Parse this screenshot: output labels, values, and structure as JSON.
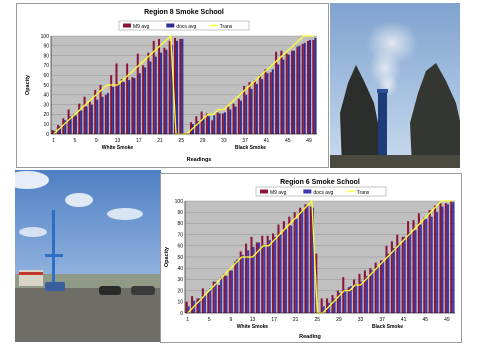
{
  "chart_data": [
    {
      "type": "bar",
      "title": "Region 8 Smoke School",
      "xlabel": "Readings",
      "ylabel": "Opacity",
      "ylim": [
        0,
        100
      ],
      "yticks": [
        0,
        10,
        20,
        30,
        40,
        50,
        60,
        70,
        80,
        90,
        100
      ],
      "xticks": [
        "1",
        "5",
        "9",
        "13",
        "17",
        "21",
        "25",
        "29",
        "33",
        "37",
        "41",
        "45",
        "49"
      ],
      "group_labels": [
        "White Smoke",
        "Black Smoke"
      ],
      "legend": {
        "position": "top-center",
        "labels": [
          "M9 avg",
          "docs avg",
          "Trans"
        ]
      },
      "grid": true,
      "colors": {
        "m9": "#8b1538",
        "docs": "#2f2f9a",
        "trans": "#ffff33",
        "plot_bg": "#c0c0c0"
      },
      "readings": [
        1,
        2,
        3,
        4,
        5,
        6,
        7,
        8,
        9,
        10,
        11,
        12,
        13,
        14,
        15,
        16,
        17,
        18,
        19,
        20,
        21,
        22,
        23,
        24,
        25,
        26,
        27,
        28,
        29,
        30,
        31,
        32,
        33,
        34,
        35,
        36,
        37,
        38,
        39,
        40,
        41,
        42,
        43,
        44,
        45,
        46,
        47,
        48,
        49,
        50
      ],
      "series": [
        {
          "name": "M9 avg",
          "values": [
            4,
            9,
            16,
            25,
            20,
            31,
            38,
            33,
            45,
            50,
            40,
            60,
            72,
            56,
            72,
            58,
            82,
            70,
            83,
            95,
            97,
            88,
            95,
            98,
            97,
            0,
            12,
            18,
            23,
            21,
            14,
            22,
            21,
            28,
            31,
            36,
            49,
            53,
            55,
            60,
            66,
            63,
            84,
            85,
            82,
            85,
            89,
            92,
            95,
            96
          ]
        },
        {
          "name": "docs avg",
          "values": [
            3,
            8,
            14,
            18,
            19,
            24,
            28,
            30,
            35,
            38,
            42,
            48,
            52,
            53,
            55,
            57,
            62,
            68,
            74,
            79,
            83,
            86,
            91,
            95,
            97,
            0,
            10,
            13,
            16,
            18,
            19,
            21,
            22,
            25,
            28,
            34,
            40,
            46,
            51,
            56,
            62,
            66,
            71,
            76,
            81,
            85,
            90,
            93,
            96,
            98
          ]
        },
        {
          "name": "Trans",
          "values": [
            0,
            5,
            10,
            15,
            20,
            25,
            30,
            35,
            40,
            45,
            50,
            50,
            50,
            55,
            60,
            65,
            70,
            75,
            80,
            85,
            90,
            95,
            100,
            0,
            0,
            0,
            5,
            10,
            15,
            20,
            20,
            25,
            25,
            30,
            35,
            40,
            45,
            50,
            55,
            60,
            65,
            70,
            75,
            80,
            85,
            90,
            95,
            100,
            100,
            100
          ]
        }
      ]
    },
    {
      "type": "bar",
      "title": "Region 6 Smoke School",
      "xlabel": "Reading",
      "ylabel": "Opacity",
      "ylim": [
        0,
        100
      ],
      "yticks": [
        0,
        10,
        20,
        30,
        40,
        50,
        60,
        70,
        80,
        90,
        100
      ],
      "xticks": [
        "1",
        "5",
        "9",
        "13",
        "17",
        "21",
        "25",
        "29",
        "33",
        "37",
        "41",
        "45",
        "49"
      ],
      "group_labels": [
        "White Smoke",
        "Black Smoke"
      ],
      "legend": {
        "position": "top-center",
        "labels": [
          "M9 avg",
          "docs avg",
          "Trans"
        ]
      },
      "grid": true,
      "colors": {
        "m9": "#8b1538",
        "docs": "#3a3ab0",
        "trans": "#ffff33",
        "plot_bg": "#c0c0c0"
      },
      "readings": [
        1,
        2,
        3,
        4,
        5,
        6,
        7,
        8,
        9,
        10,
        11,
        12,
        13,
        14,
        15,
        16,
        17,
        18,
        19,
        20,
        21,
        22,
        23,
        24,
        25,
        26,
        27,
        28,
        29,
        30,
        31,
        32,
        33,
        34,
        35,
        36,
        37,
        38,
        39,
        40,
        41,
        42,
        43,
        44,
        45,
        46,
        47,
        48,
        49,
        50
      ],
      "series": [
        {
          "name": "M9 avg",
          "values": [
            10,
            15,
            13,
            22,
            19,
            28,
            25,
            35,
            38,
            46,
            55,
            62,
            68,
            63,
            69,
            69,
            71,
            79,
            82,
            86,
            90,
            94,
            97,
            95,
            53,
            13,
            13,
            16,
            20,
            32,
            23,
            30,
            35,
            38,
            40,
            45,
            47,
            60,
            64,
            70,
            68,
            82,
            83,
            89,
            85,
            92,
            96,
            98,
            98,
            100
          ]
        },
        {
          "name": "docs avg",
          "values": [
            6,
            11,
            13,
            16,
            22,
            28,
            32,
            33,
            38,
            48,
            52,
            56,
            59,
            63,
            61,
            65,
            68,
            70,
            75,
            78,
            84,
            92,
            96,
            94,
            0,
            6,
            9,
            13,
            18,
            21,
            24,
            26,
            28,
            33,
            38,
            42,
            47,
            53,
            58,
            62,
            68,
            72,
            74,
            79,
            84,
            86,
            90,
            95,
            97,
            99
          ]
        },
        {
          "name": "Trans",
          "values": [
            0,
            5,
            10,
            15,
            20,
            25,
            30,
            35,
            40,
            45,
            50,
            50,
            50,
            55,
            60,
            60,
            65,
            70,
            75,
            80,
            85,
            90,
            95,
            100,
            0,
            0,
            5,
            10,
            15,
            20,
            20,
            25,
            25,
            30,
            35,
            40,
            45,
            50,
            55,
            60,
            65,
            70,
            75,
            80,
            85,
            90,
            95,
            100,
            100,
            100
          ]
        }
      ]
    }
  ]
}
